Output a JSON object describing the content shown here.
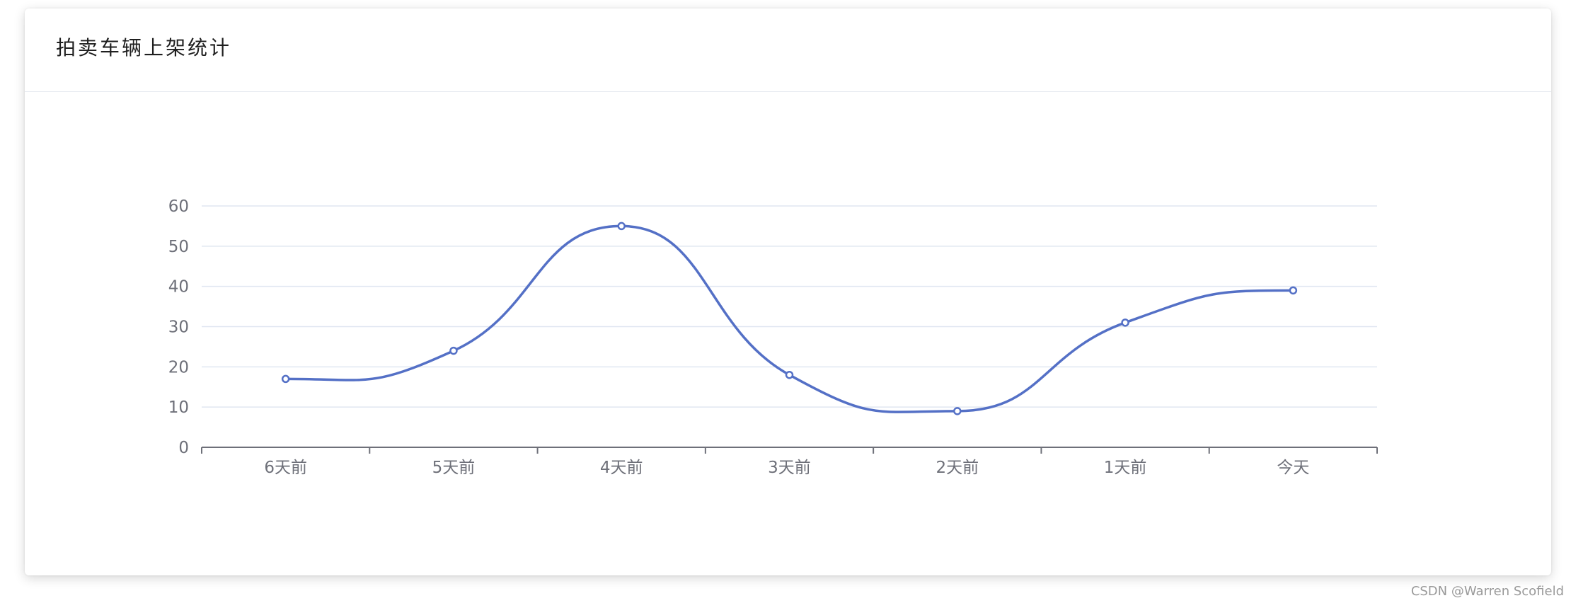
{
  "card": {
    "title": "拍卖车辆上架统计"
  },
  "watermark": "CSDN @Warren Scofield",
  "colors": {
    "line": "#5470c6",
    "grid": "#e0e6f1",
    "axis": "#6e7079",
    "label": "#6e7079"
  },
  "chart_data": {
    "type": "line",
    "smooth": true,
    "title": "拍卖车辆上架统计",
    "categories": [
      "6天前",
      "5天前",
      "4天前",
      "3天前",
      "2天前",
      "1天前",
      "今天"
    ],
    "series": [
      {
        "values": [
          17,
          24,
          55,
          18,
          9,
          31,
          39
        ]
      }
    ],
    "yticks": [
      0,
      10,
      20,
      30,
      40,
      50,
      60
    ],
    "ylim": [
      0,
      60
    ],
    "grid": true,
    "legend": "none"
  }
}
